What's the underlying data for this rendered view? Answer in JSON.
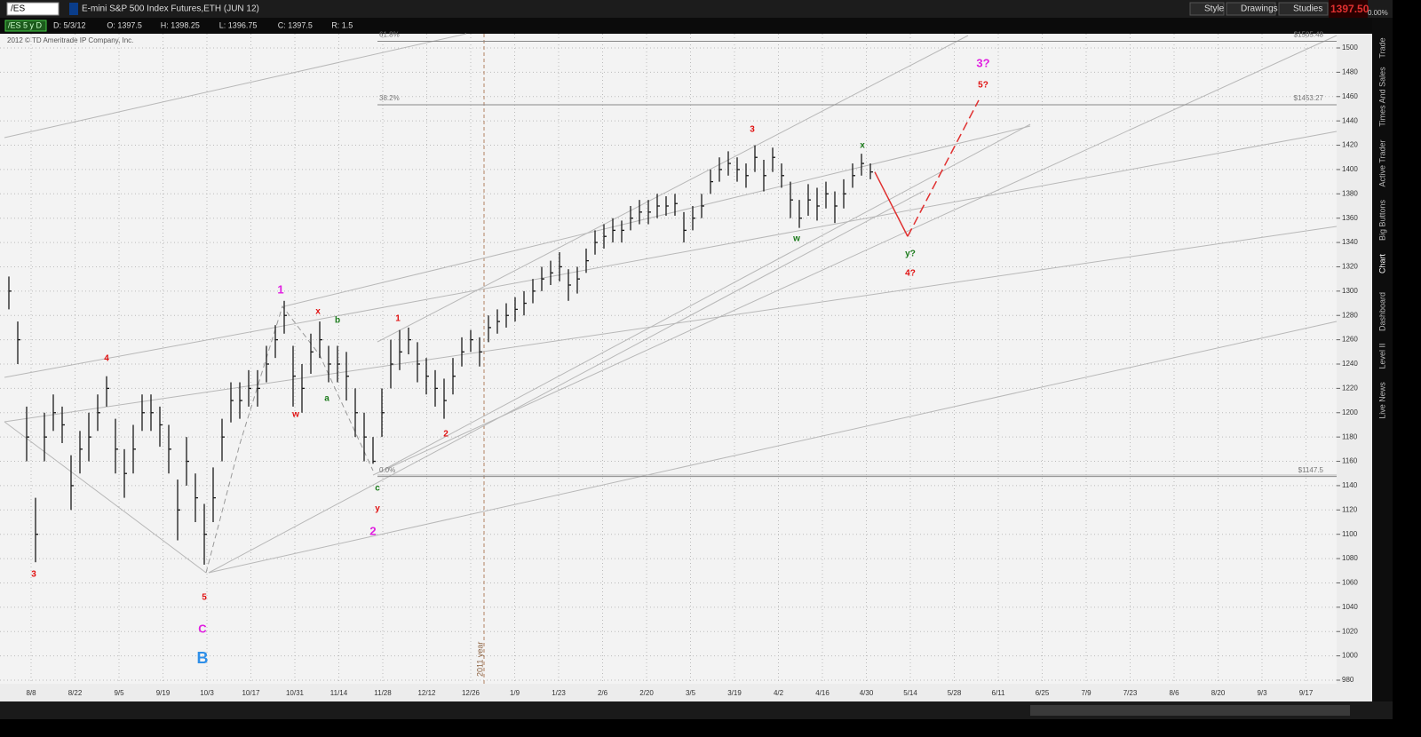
{
  "header": {
    "symbol": "/ES",
    "description": "E-mini S&P 500 Index Futures,ETH (JUN 12)",
    "last_price": "1397.50",
    "change": "0.00%"
  },
  "toolbar": {
    "buttons": [
      "Style",
      "Drawings",
      "Studies"
    ]
  },
  "info_bar": {
    "period": "/ES 5 y D",
    "items": [
      "D: 5/3/12",
      "O: 1397.5",
      "H: 1398.25",
      "L: 1396.75",
      "C: 1397.5",
      "R: 1.5"
    ]
  },
  "copyright": "2012 © TD Ameritrade IP Company, Inc.",
  "sidebar": {
    "tabs": [
      "Trade",
      "Times And Sales",
      "Active Trader",
      "Big Buttons",
      "Chart",
      "Dashboard",
      "Level II",
      "Live News"
    ]
  },
  "chart_data": {
    "type": "ohlc",
    "color": "#1a1a1a",
    "categories": [
      "8/8",
      "8/22",
      "9/5",
      "9/19",
      "10/3",
      "10/17",
      "10/31",
      "11/14",
      "11/28",
      "12/12",
      "12/26",
      "1/9",
      "1/23",
      "2/6",
      "2/20",
      "3/5",
      "3/19",
      "4/2",
      "4/16",
      "4/30",
      "5/14",
      "5/28",
      "6/11",
      "6/25",
      "7/9",
      "7/23",
      "8/6",
      "8/20",
      "9/3",
      "9/17"
    ],
    "year_marker": "2011 year",
    "high": [
      1312,
      1275,
      1205,
      1130,
      1200,
      1215,
      1205,
      1165,
      1185,
      1200,
      1215,
      1230,
      1195,
      1170,
      1190,
      1215,
      1215,
      1205,
      1190,
      1145,
      1180,
      1150,
      1125,
      1155,
      1195,
      1225,
      1225,
      1235,
      1235,
      1255,
      1272,
      1292,
      1255,
      1240,
      1265,
      1275,
      1255,
      1255,
      1250,
      1220,
      1200,
      1180,
      1220,
      1260,
      1268,
      1270,
      1258,
      1245,
      1235,
      1228,
      1245,
      1262,
      1268,
      1262,
      1280,
      1285,
      1290,
      1295,
      1300,
      1310,
      1320,
      1325,
      1332,
      1318,
      1320,
      1335,
      1350,
      1355,
      1360,
      1358,
      1370,
      1375,
      1375,
      1380,
      1378,
      1380,
      1365,
      1370,
      1380,
      1400,
      1410,
      1415,
      1410,
      1405,
      1420,
      1408,
      1418,
      1405,
      1390,
      1375,
      1388,
      1385,
      1390,
      1382,
      1392,
      1405,
      1413,
      1405
    ],
    "low": [
      1285,
      1240,
      1160,
      1077,
      1160,
      1185,
      1175,
      1120,
      1150,
      1160,
      1185,
      1205,
      1150,
      1130,
      1150,
      1185,
      1185,
      1172,
      1150,
      1095,
      1140,
      1110,
      1075,
      1110,
      1160,
      1192,
      1195,
      1205,
      1205,
      1225,
      1245,
      1265,
      1205,
      1200,
      1232,
      1245,
      1225,
      1225,
      1210,
      1180,
      1160,
      1158,
      1180,
      1220,
      1235,
      1248,
      1225,
      1215,
      1205,
      1195,
      1215,
      1238,
      1250,
      1238,
      1258,
      1265,
      1270,
      1275,
      1280,
      1290,
      1300,
      1305,
      1308,
      1292,
      1298,
      1315,
      1330,
      1335,
      1340,
      1340,
      1350,
      1355,
      1355,
      1360,
      1362,
      1362,
      1340,
      1350,
      1360,
      1380,
      1390,
      1395,
      1390,
      1385,
      1398,
      1382,
      1398,
      1385,
      1360,
      1352,
      1362,
      1358,
      1368,
      1356,
      1368,
      1385,
      1395,
      1392
    ],
    "close": [
      1300,
      1260,
      1180,
      1100,
      1180,
      1200,
      1190,
      1140,
      1170,
      1180,
      1200,
      1220,
      1170,
      1150,
      1170,
      1200,
      1200,
      1190,
      1170,
      1120,
      1160,
      1130,
      1100,
      1130,
      1180,
      1210,
      1210,
      1220,
      1220,
      1240,
      1260,
      1280,
      1230,
      1220,
      1250,
      1260,
      1240,
      1240,
      1230,
      1200,
      1180,
      1160,
      1200,
      1240,
      1250,
      1260,
      1240,
      1230,
      1220,
      1210,
      1230,
      1250,
      1260,
      1250,
      1270,
      1275,
      1280,
      1285,
      1290,
      1300,
      1310,
      1315,
      1320,
      1305,
      1310,
      1325,
      1340,
      1345,
      1350,
      1350,
      1360,
      1365,
      1365,
      1370,
      1370,
      1372,
      1350,
      1360,
      1370,
      1390,
      1400,
      1405,
      1400,
      1395,
      1410,
      1395,
      1410,
      1395,
      1375,
      1360,
      1375,
      1370,
      1380,
      1370,
      1380,
      1395,
      1405,
      1398
    ],
    "ylim": [
      980,
      1500
    ],
    "yticks": [
      980,
      1000,
      1020,
      1040,
      1060,
      1080,
      1100,
      1120,
      1140,
      1160,
      1180,
      1200,
      1220,
      1240,
      1260,
      1280,
      1300,
      1320,
      1340,
      1360,
      1380,
      1400,
      1420,
      1440,
      1460,
      1480,
      1500
    ],
    "grid": true,
    "fib_levels": [
      {
        "label": "61.8%",
        "price_label": "$1505.48",
        "value": 1505.48
      },
      {
        "label": "38.2%",
        "price_label": "$1453.27",
        "value": 1453.27
      },
      {
        "label": "0.0%",
        "price_label": "$1147.5",
        "value": 1147.5
      }
    ],
    "projection": [
      {
        "value": 1345
      },
      {
        "value": 1457
      }
    ],
    "wave_labels": [
      {
        "text": "3",
        "color": "#e01010"
      },
      {
        "text": "4",
        "color": "#e01010"
      },
      {
        "text": "5",
        "color": "#e01010"
      },
      {
        "text": "C",
        "color": "#e020e0"
      },
      {
        "text": "B",
        "color": "#2f8fe8"
      },
      {
        "text": "1",
        "color": "#e020e0"
      },
      {
        "text": "x",
        "color": "#e01010"
      },
      {
        "text": "w",
        "color": "#e01010"
      },
      {
        "text": "b",
        "color": "#1a7a1a"
      },
      {
        "text": "a",
        "color": "#1a7a1a"
      },
      {
        "text": "1",
        "color": "#e01010"
      },
      {
        "text": "2",
        "color": "#e01010"
      },
      {
        "text": "c",
        "color": "#1a7a1a"
      },
      {
        "text": "y",
        "color": "#e01010"
      },
      {
        "text": "2",
        "color": "#e020e0"
      },
      {
        "text": "3",
        "color": "#e01010"
      },
      {
        "text": "w",
        "color": "#1a7a1a"
      },
      {
        "text": "x",
        "color": "#1a7a1a"
      },
      {
        "text": "y?",
        "color": "#1a7a1a"
      },
      {
        "text": "4?",
        "color": "#e01010"
      },
      {
        "text": "5?",
        "color": "#e01010"
      },
      {
        "text": "3?",
        "color": "#e020e0"
      }
    ]
  }
}
